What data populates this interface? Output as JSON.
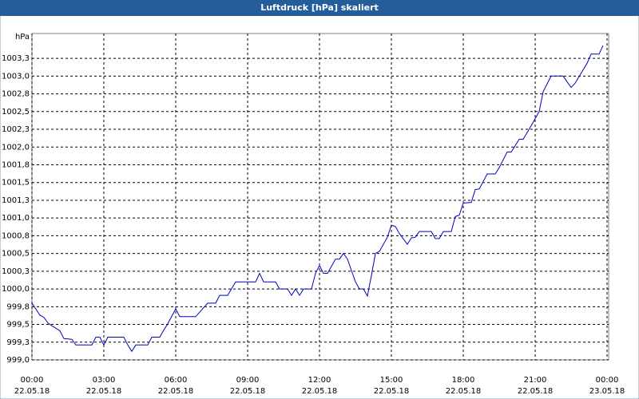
{
  "chart_data": {
    "type": "line",
    "title": "Luftdruck [hPa] skaliert",
    "y_label": "hPa",
    "grid": true,
    "xlim": [
      "22.05.18 00:00",
      "23.05.18 00:04"
    ],
    "ylim": [
      999,
      1003.6
    ],
    "xticks": [
      {
        "value": "22.05.18 00:00",
        "label": [
          "00:00",
          "22.05.18"
        ]
      },
      {
        "value": "22.05.18 03:00",
        "label": [
          "03:00",
          "22.05.18"
        ]
      },
      {
        "value": "22.05.18 06:00",
        "label": [
          "06:00",
          "22.05.18"
        ]
      },
      {
        "value": "22.05.18 09:00",
        "label": [
          "09:00",
          "22.05.18"
        ]
      },
      {
        "value": "22.05.18 12:00",
        "label": [
          "12:00",
          "22.05.18"
        ]
      },
      {
        "value": "22.05.18 15:00",
        "label": [
          "15:00",
          "22.05.18"
        ]
      },
      {
        "value": "22.05.18 18:00",
        "label": [
          "18:00",
          "22.05.18"
        ]
      },
      {
        "value": "22.05.18 21:00",
        "label": [
          "21:00",
          "22.05.18"
        ]
      },
      {
        "value": "23.05.18 00:00",
        "label": [
          "00:00",
          "23.05.18"
        ]
      }
    ],
    "yticks": [
      {
        "value": 999,
        "label": "999,0"
      },
      {
        "value": 999.25,
        "label": "999,3"
      },
      {
        "value": 999.5,
        "label": "999,5"
      },
      {
        "value": 999.75,
        "label": "999,8"
      },
      {
        "value": 1000,
        "label": "1000,0"
      },
      {
        "value": 1000.25,
        "label": "1000,3"
      },
      {
        "value": 1000.5,
        "label": "1000,5"
      },
      {
        "value": 1000.75,
        "label": "1000,8"
      },
      {
        "value": 1001,
        "label": "1001,0"
      },
      {
        "value": 1001.25,
        "label": "1001,3"
      },
      {
        "value": 1001.5,
        "label": "1001,5"
      },
      {
        "value": 1001.75,
        "label": "1001,8"
      },
      {
        "value": 1002,
        "label": "1002,0"
      },
      {
        "value": 1002.25,
        "label": "1002,3"
      },
      {
        "value": 1002.5,
        "label": "1002,5"
      },
      {
        "value": 1002.75,
        "label": "1002,8"
      },
      {
        "value": 1003,
        "label": "1003,0"
      },
      {
        "value": 1003.25,
        "label": "1003,3"
      }
    ],
    "x": [
      "22.05.18 00:00",
      "22.05.18 00:20",
      "22.05.18 00:30",
      "22.05.18 00:40",
      "22.05.18 00:50",
      "22.05.18 01:10",
      "22.05.18 01:20",
      "22.05.18 01:40",
      "22.05.18 01:50",
      "22.05.18 02:30",
      "22.05.18 02:40",
      "22.05.18 02:50",
      "22.05.18 03:00",
      "22.05.18 03:10",
      "22.05.18 03:50",
      "22.05.18 04:00",
      "22.05.18 04:10",
      "22.05.18 04:20",
      "22.05.18 04:50",
      "22.05.18 05:00",
      "22.05.18 05:20",
      "22.05.18 05:30",
      "22.05.18 05:40",
      "22.05.18 06:00",
      "22.05.18 06:10",
      "22.05.18 06:50",
      "22.05.18 07:20",
      "22.05.18 07:40",
      "22.05.18 07:50",
      "22.05.18 08:10",
      "22.05.18 08:30",
      "22.05.18 09:20",
      "22.05.18 09:30",
      "22.05.18 09:40",
      "22.05.18 10:10",
      "22.05.18 10:20",
      "22.05.18 10:40",
      "22.05.18 10:50",
      "22.05.18 11:00",
      "22.05.18 11:10",
      "22.05.18 11:20",
      "22.05.18 11:40",
      "22.05.18 11:50",
      "22.05.18 12:00",
      "22.05.18 12:10",
      "22.05.18 12:20",
      "22.05.18 12:40",
      "22.05.18 12:50",
      "22.05.18 13:00",
      "22.05.18 13:10",
      "22.05.18 13:30",
      "22.05.18 13:40",
      "22.05.18 13:50",
      "22.05.18 14:00",
      "22.05.18 14:10",
      "22.05.18 14:20",
      "22.05.18 14:30",
      "22.05.18 14:50",
      "22.05.18 15:00",
      "22.05.18 15:10",
      "22.05.18 15:20",
      "22.05.18 15:40",
      "22.05.18 15:50",
      "22.05.18 16:00",
      "22.05.18 16:10",
      "22.05.18 16:40",
      "22.05.18 16:50",
      "22.05.18 17:00",
      "22.05.18 17:10",
      "22.05.18 17:30",
      "22.05.18 17:40",
      "22.05.18 17:50",
      "22.05.18 18:00",
      "22.05.18 18:20",
      "22.05.18 18:30",
      "22.05.18 18:40",
      "22.05.18 19:00",
      "22.05.18 19:20",
      "22.05.18 19:30",
      "22.05.18 19:50",
      "22.05.18 20:00",
      "22.05.18 20:20",
      "22.05.18 20:30",
      "22.05.18 20:50",
      "22.05.18 21:10",
      "22.05.18 21:20",
      "22.05.18 21:40",
      "22.05.18 22:10",
      "22.05.18 22:30",
      "22.05.18 22:40",
      "22.05.18 23:10",
      "22.05.18 23:20",
      "22.05.18 23:40",
      "22.05.18 23:50"
    ],
    "series": [
      {
        "color": "#0000c0",
        "values": [
          999.8,
          999.63,
          999.6,
          999.52,
          999.48,
          999.41,
          999.3,
          999.29,
          999.21,
          999.21,
          999.32,
          999.32,
          999.21,
          999.32,
          999.32,
          999.21,
          999.12,
          999.21,
          999.21,
          999.32,
          999.32,
          999.42,
          999.51,
          999.72,
          999.61,
          999.61,
          999.8,
          999.8,
          999.91,
          999.91,
          1000.1,
          1000.1,
          1000.22,
          1000.1,
          1000.1,
          1000.0,
          1000.0,
          999.91,
          1000.0,
          999.91,
          1000.0,
          1000.0,
          1000.22,
          1000.33,
          1000.22,
          1000.22,
          1000.42,
          1000.42,
          1000.5,
          1000.42,
          1000.1,
          1000.0,
          1000.0,
          999.9,
          1000.19,
          1000.5,
          1000.53,
          1000.73,
          1000.9,
          1000.88,
          1000.78,
          1000.63,
          1000.72,
          1000.73,
          1000.81,
          1000.81,
          1000.71,
          1000.71,
          1000.81,
          1000.81,
          1001.02,
          1001.04,
          1001.21,
          1001.22,
          1001.4,
          1001.41,
          1001.62,
          1001.62,
          1001.71,
          1001.93,
          1001.93,
          1002.11,
          1002.11,
          1002.3,
          1002.5,
          1002.78,
          1003.0,
          1003.0,
          1002.84,
          1002.9,
          1003.18,
          1003.31,
          1003.31,
          1003.43
        ]
      }
    ]
  }
}
